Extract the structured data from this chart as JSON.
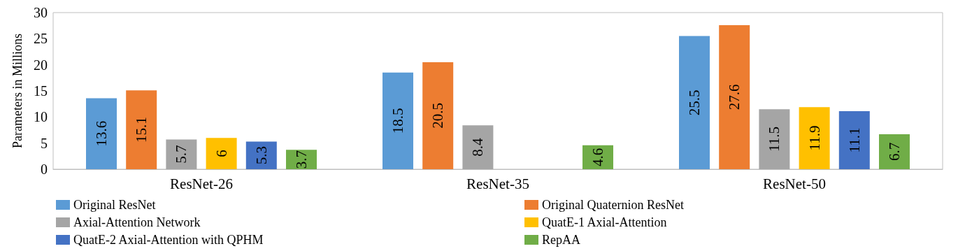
{
  "chart_data": {
    "type": "bar",
    "ylabel": "Parameters in Millions",
    "categories": [
      "ResNet-26",
      "ResNet-35",
      "ResNet-50"
    ],
    "series": [
      {
        "name": "Original ResNet",
        "color": "#5b9bd5",
        "values": [
          13.6,
          18.5,
          25.5
        ]
      },
      {
        "name": "Original Quaternion ResNet",
        "color": "#ed7d31",
        "values": [
          15.1,
          20.5,
          27.6
        ]
      },
      {
        "name": "Axial-Attention Network",
        "color": "#a5a5a5",
        "values": [
          5.7,
          8.4,
          11.5
        ]
      },
      {
        "name": "QuatE-1 Axial-Attention",
        "color": "#ffc000",
        "values": [
          6,
          null,
          11.9
        ]
      },
      {
        "name": "QuatE-2 Axial-Attention with QPHM",
        "color": "#4472c4",
        "values": [
          5.3,
          null,
          11.1
        ]
      },
      {
        "name": "RepAA",
        "color": "#70ad47",
        "values": [
          3.7,
          4.6,
          6.7
        ]
      }
    ],
    "ylim": [
      0,
      30
    ],
    "yticks": [
      0,
      5,
      10,
      15,
      20,
      25,
      30
    ],
    "grid": false,
    "legend": "bottom",
    "data_labels": true
  }
}
